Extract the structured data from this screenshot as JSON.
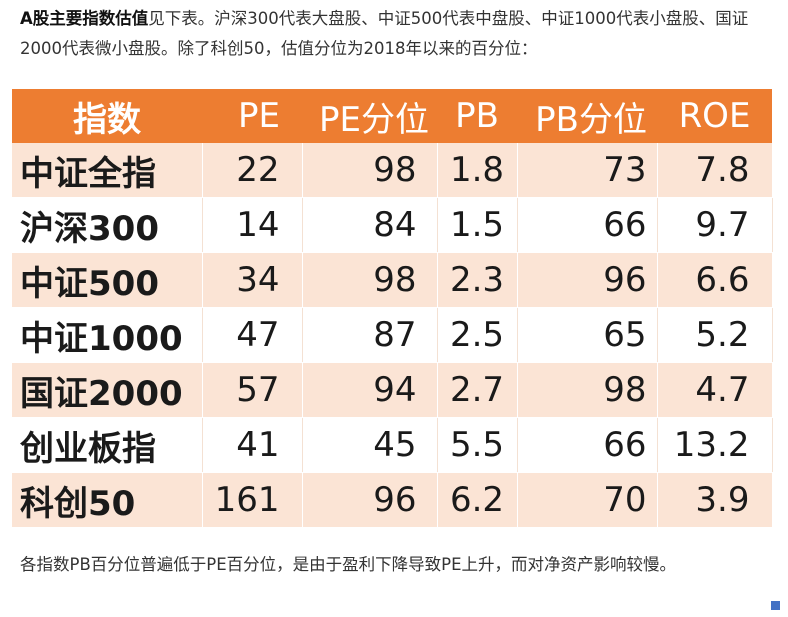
{
  "intro": {
    "lead": "A股主要指数估值",
    "text": "见下表。沪深300代表大盘股、中证500代表中盘股、中证1000代表小盘股、国证2000代表微小盘股。除了科创50，估值分位为2018年以来的百分位："
  },
  "table": {
    "headers": [
      "指数",
      "PE",
      "PE分位",
      "PB",
      "PB分位",
      "ROE"
    ],
    "rows": [
      {
        "name": "中证全指",
        "pe": "22",
        "pe_pct": "98",
        "pb": "1.8",
        "pb_pct": "73",
        "roe": "7.8"
      },
      {
        "name": "沪深300",
        "pe": "14",
        "pe_pct": "84",
        "pb": "1.5",
        "pb_pct": "66",
        "roe": "9.7"
      },
      {
        "name": "中证500",
        "pe": "34",
        "pe_pct": "98",
        "pb": "2.3",
        "pb_pct": "96",
        "roe": "6.6"
      },
      {
        "name": "中证1000",
        "pe": "47",
        "pe_pct": "87",
        "pb": "2.5",
        "pb_pct": "65",
        "roe": "5.2"
      },
      {
        "name": "国证2000",
        "pe": "57",
        "pe_pct": "94",
        "pb": "2.7",
        "pb_pct": "98",
        "roe": "4.7"
      },
      {
        "name": "创业板指",
        "pe": "41",
        "pe_pct": "45",
        "pb": "5.5",
        "pb_pct": "66",
        "roe": "13.2"
      },
      {
        "name": "科创50",
        "pe": "161",
        "pe_pct": "96",
        "pb": "6.2",
        "pb_pct": "70",
        "roe": "3.9"
      }
    ]
  },
  "note": "各指数PB百分位普遍低于PE百分位，是由于盈利下降导致PE上升，而对净资产影响较慢。",
  "colors": {
    "header_bg": "#ed7d31",
    "odd_row_bg": "#fbe4d5",
    "even_row_bg": "#ffffff",
    "resize_handle": "#4472c4"
  }
}
